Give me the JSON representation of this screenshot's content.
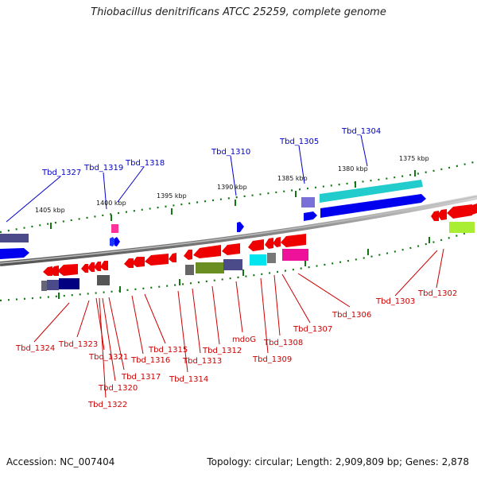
{
  "title": "Thiobacillus denitrificans ATCC 25259, complete genome",
  "accession": "Accession: NC_007404",
  "genome_info": "Topology: circular; Length: 2,909,809 bp; Genes: 2,878",
  "ticks": [
    "1405 kbp",
    "1400 kbp",
    "1395 kbp",
    "1390 kbp",
    "1385 kbp",
    "1380 kbp",
    "1375 kbp"
  ],
  "blue_labels": [
    "Tbd_1327",
    "Tbd_1319",
    "Tbd_1318",
    "Tbd_1310",
    "Tbd_1305",
    "Tbd_1304"
  ],
  "red_labels": [
    "Tbd_1324",
    "Tbd_1323",
    "Tbd_1321",
    "Tbd_1320",
    "Tbd_1322",
    "Tbd_1317",
    "Tbd_1316",
    "Tbd_1315",
    "Tbd_1314",
    "Tbd_1313",
    "Tbd_1312",
    "mdoG",
    "Tbd_1309",
    "Tbd_1308",
    "Tbd_1307",
    "Tbd_1306",
    "Tbd_1303",
    "Tbd_1302"
  ],
  "colors": {
    "forward_strand": "#0000ee",
    "reverse_strand": "#ee0000",
    "backbone": "#888888",
    "tick_dots": "#117711",
    "label_blue": "#0000cc",
    "label_red": "#cc0000"
  }
}
